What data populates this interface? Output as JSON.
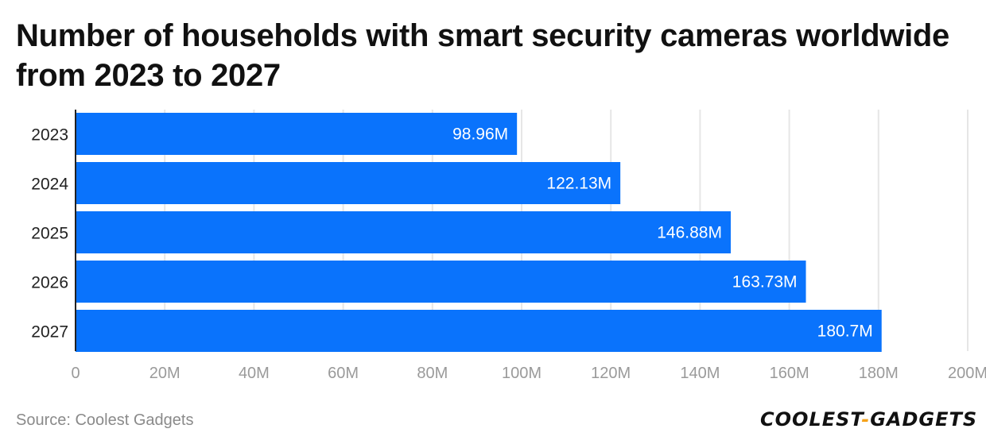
{
  "chart_data": {
    "type": "bar",
    "orientation": "horizontal",
    "title": "Number of households with smart security cameras worldwide from 2023 to 2027",
    "categories": [
      "2023",
      "2024",
      "2025",
      "2026",
      "2027"
    ],
    "values": [
      98.96,
      122.13,
      146.88,
      163.73,
      180.7
    ],
    "value_labels": [
      "98.96M",
      "122.13M",
      "146.88M",
      "163.73M",
      "180.7M"
    ],
    "x_ticks": [
      0,
      20,
      40,
      60,
      80,
      100,
      120,
      140,
      160,
      180,
      200
    ],
    "x_tick_labels": [
      "0",
      "20M",
      "40M",
      "60M",
      "80M",
      "100M",
      "120M",
      "140M",
      "160M",
      "180M",
      "200M"
    ],
    "xlim": [
      0,
      200
    ],
    "xlabel": "",
    "ylabel": "",
    "grid": true,
    "bar_color": "#0a73fc",
    "grid_color": "#e6e6e6",
    "label_color": "#ffffff"
  },
  "footer": {
    "source": "Source: Coolest Gadgets",
    "logo_part1": "COOLEST",
    "logo_dash": "-",
    "logo_part2": "GADGETS"
  }
}
